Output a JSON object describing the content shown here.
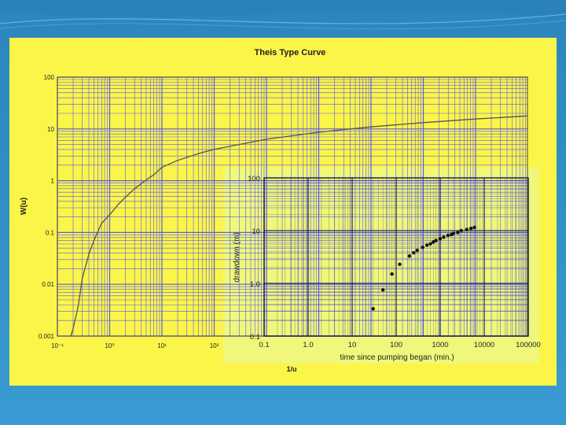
{
  "slide": {
    "background": "#2f8fc6",
    "panel_color": "#fbf54a",
    "inset_color": "#f0f77a"
  },
  "chart_data": [
    {
      "type": "line",
      "title": "Theis  Type  Curve",
      "xlabel": "1/u",
      "ylabel": "W(u)",
      "x_scale": "log",
      "y_scale": "log",
      "xlim": [
        0.1,
        100000000
      ],
      "ylim": [
        0.001,
        100
      ],
      "grid": true,
      "grid_color": "#5a5af0",
      "line_color": "#555555",
      "x_tick_labels": [
        "10⁻¹",
        "10⁰",
        "10¹",
        "10²"
      ],
      "y_tick_labels": [
        "0.001",
        "0.01",
        "0.1",
        "1",
        "10",
        "100"
      ],
      "series": [
        {
          "x": [
            0.18,
            0.2,
            0.25,
            0.3,
            0.4,
            0.5,
            0.7,
            1,
            1.5,
            2,
            3,
            5,
            7,
            10,
            20,
            50,
            100,
            1000,
            10000,
            100000,
            1000000,
            10000000,
            100000000
          ],
          "values": [
            0.001,
            0.0014,
            0.0038,
            0.013,
            0.038,
            0.07,
            0.15,
            0.22,
            0.36,
            0.48,
            0.7,
            1.04,
            1.3,
            1.82,
            2.47,
            3.35,
            4.04,
            6.33,
            8.63,
            10.94,
            13.24,
            15.54,
            17.84
          ]
        }
      ]
    },
    {
      "type": "scatter",
      "xlabel": "time since pumping began (min.)",
      "ylabel": "drawdown (m)",
      "x_scale": "log",
      "y_scale": "log",
      "xlim": [
        0.1,
        100000
      ],
      "ylim": [
        0.1,
        100
      ],
      "grid": true,
      "grid_color": "#1a1a6a",
      "point_color": "#111111",
      "x_tick_labels": [
        "0.1",
        "1.0",
        "10",
        "100",
        "1000",
        "10000",
        "100000"
      ],
      "y_tick_labels": [
        "0.1",
        "1.0",
        "10",
        "100"
      ],
      "series": [
        {
          "x": [
            30,
            50,
            80,
            120,
            200,
            250,
            300,
            400,
            500,
            600,
            700,
            800,
            1000,
            1200,
            1500,
            1800,
            2000,
            2500,
            3000,
            4000,
            5000,
            6000
          ],
          "values": [
            0.33,
            0.75,
            1.5,
            2.3,
            3.3,
            3.8,
            4.2,
            4.8,
            5.3,
            5.6,
            6.1,
            6.5,
            7.0,
            7.5,
            8.1,
            8.4,
            8.9,
            9.2,
            10.0,
            10.5,
            11.0,
            11.5
          ]
        }
      ]
    }
  ]
}
